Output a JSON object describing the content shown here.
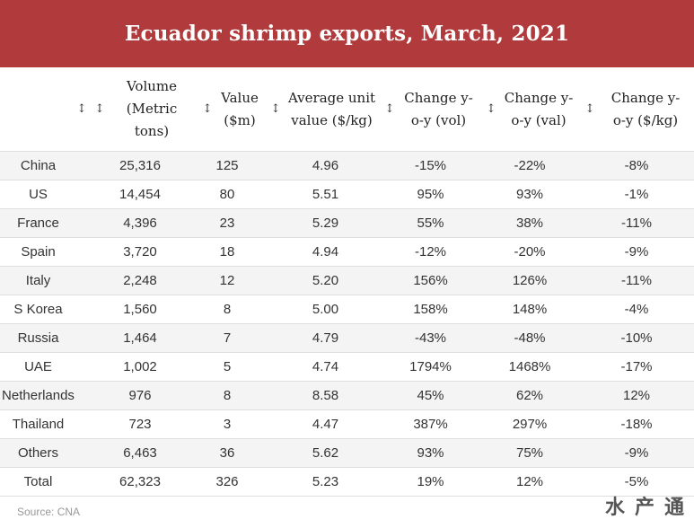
{
  "title": "Ecuador shrimp exports, March, 2021",
  "sort_icon": "sort-updown-icon",
  "chart_data": {
    "type": "table",
    "columns": [
      {
        "key": "country",
        "label": ""
      },
      {
        "key": "volume",
        "label": "Volume (Metric tons)"
      },
      {
        "key": "value",
        "label": "Value ($m)"
      },
      {
        "key": "unit",
        "label": "Average unit value ($/kg)"
      },
      {
        "key": "chg_vol",
        "label": "Change y-o-y (vol)"
      },
      {
        "key": "chg_val",
        "label": "Change y-o-y (val)"
      },
      {
        "key": "chg_kg",
        "label": "Change y-o-y ($/kg)"
      }
    ],
    "rows": [
      [
        "China",
        "25,316",
        "125",
        "4.96",
        "-15%",
        "-22%",
        "-8%"
      ],
      [
        "US",
        "14,454",
        "80",
        "5.51",
        "95%",
        "93%",
        "-1%"
      ],
      [
        "France",
        "4,396",
        "23",
        "5.29",
        "55%",
        "38%",
        "-11%"
      ],
      [
        "Spain",
        "3,720",
        "18",
        "4.94",
        "-12%",
        "-20%",
        "-9%"
      ],
      [
        "Italy",
        "2,248",
        "12",
        "5.20",
        "156%",
        "126%",
        "-11%"
      ],
      [
        "S Korea",
        "1,560",
        "8",
        "5.00",
        "158%",
        "148%",
        "-4%"
      ],
      [
        "Russia",
        "1,464",
        "7",
        "4.79",
        "-43%",
        "-48%",
        "-10%"
      ],
      [
        "UAE",
        "1,002",
        "5",
        "4.74",
        "1794%",
        "1468%",
        "-17%"
      ],
      [
        "Netherlands",
        "976",
        "8",
        "8.58",
        "45%",
        "62%",
        "12%"
      ],
      [
        "Thailand",
        "723",
        "3",
        "4.47",
        "387%",
        "297%",
        "-18%"
      ],
      [
        "Others",
        "6,463",
        "36",
        "5.62",
        "93%",
        "75%",
        "-9%"
      ],
      [
        "Total",
        "62,323",
        "326",
        "5.23",
        "19%",
        "12%",
        "-5%"
      ]
    ]
  },
  "source": "Source: CNA",
  "watermark": "水产通",
  "colors": {
    "header_bg": "#b13b3c",
    "stripe": "#f4f4f4",
    "border": "#dddddd"
  }
}
